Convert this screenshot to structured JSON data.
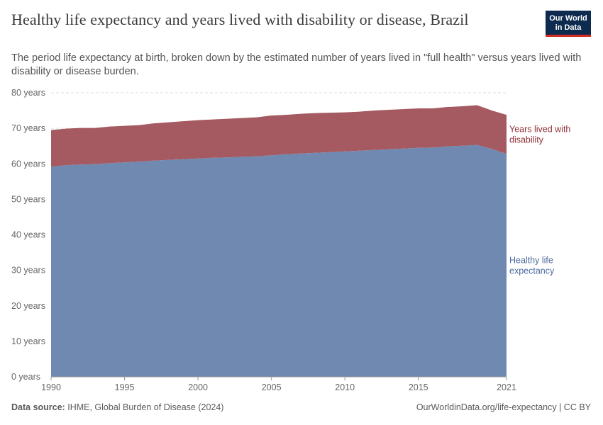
{
  "title": "Healthy life expectancy and years lived with disability or disease, Brazil",
  "subtitle": "The period life expectancy at birth, broken down by the estimated number of years lived in \"full health\" versus years lived with disability or disease burden.",
  "logo": {
    "line1": "Our World",
    "line2": "in Data"
  },
  "footer": {
    "source_label": "Data source:",
    "source_text": "IHME, Global Burden of Disease (2024)",
    "link_text": "OurWorldinData.org/life-expectancy | CC BY"
  },
  "chart_data": {
    "type": "area",
    "stacked": true,
    "x": [
      1990,
      1991,
      1992,
      1993,
      1994,
      1995,
      1996,
      1997,
      1998,
      1999,
      2000,
      2001,
      2002,
      2003,
      2004,
      2005,
      2006,
      2007,
      2008,
      2009,
      2010,
      2011,
      2012,
      2013,
      2014,
      2015,
      2016,
      2017,
      2018,
      2019,
      2020,
      2021
    ],
    "series": [
      {
        "name": "Healthy life expectancy",
        "color": "#6f89b1",
        "label_color": "#4c6a9c",
        "values": [
          59.2,
          59.6,
          59.8,
          59.9,
          60.2,
          60.4,
          60.6,
          60.9,
          61.1,
          61.3,
          61.5,
          61.7,
          61.8,
          62.0,
          62.1,
          62.4,
          62.7,
          62.9,
          63.1,
          63.3,
          63.5,
          63.7,
          63.9,
          64.1,
          64.3,
          64.5,
          64.6,
          64.9,
          65.1,
          65.3,
          64.2,
          62.8
        ]
      },
      {
        "name": "Years lived with disability",
        "color": "#a55a61",
        "label_color": "#8f2f37",
        "values": [
          10.3,
          10.3,
          10.3,
          10.2,
          10.3,
          10.3,
          10.3,
          10.5,
          10.6,
          10.7,
          10.8,
          10.8,
          10.9,
          10.9,
          11.0,
          11.2,
          11.1,
          11.2,
          11.2,
          11.1,
          11.0,
          11.0,
          11.1,
          11.1,
          11.1,
          11.1,
          11.0,
          11.1,
          11.1,
          11.2,
          10.8,
          11.0
        ]
      }
    ],
    "y_ticks": [
      "0 years",
      "10 years",
      "20 years",
      "30 years",
      "40 years",
      "50 years",
      "60 years",
      "70 years",
      "80 years"
    ],
    "y_tick_values": [
      0,
      10,
      20,
      30,
      40,
      50,
      60,
      70,
      80
    ],
    "x_ticks": [
      "1990",
      "1995",
      "2000",
      "2005",
      "2010",
      "2015",
      "2021"
    ],
    "x_tick_values": [
      1990,
      1995,
      2000,
      2005,
      2010,
      2015,
      2021
    ],
    "ylim": [
      0,
      80
    ],
    "xlim": [
      1990,
      2021
    ],
    "grid": true,
    "legend": "right-inline"
  }
}
